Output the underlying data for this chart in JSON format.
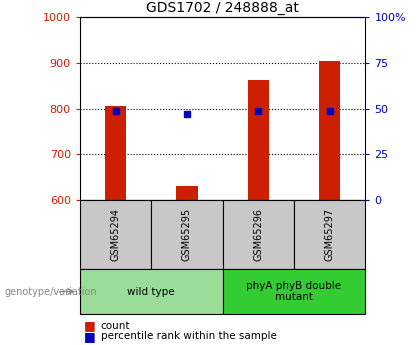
{
  "title": "GDS1702 / 248888_at",
  "samples": [
    "GSM65294",
    "GSM65295",
    "GSM65296",
    "GSM65297"
  ],
  "counts": [
    805,
    630,
    863,
    905
  ],
  "percentile_ranks": [
    49,
    47,
    49,
    49
  ],
  "ylim_left": [
    600,
    1000
  ],
  "ylim_right": [
    0,
    100
  ],
  "yticks_left": [
    600,
    700,
    800,
    900,
    1000
  ],
  "yticks_right": [
    0,
    25,
    50,
    75,
    100
  ],
  "groups": [
    {
      "label": "wild type",
      "color": "#99dd99",
      "start": 0,
      "end": 2
    },
    {
      "label": "phyA phyB double\nmutant",
      "color": "#33cc33",
      "start": 2,
      "end": 4
    }
  ],
  "bar_color": "#cc2000",
  "dot_color": "#0000bb",
  "bar_width": 0.3,
  "grid_color": "#000000",
  "label_color_left": "#cc2000",
  "label_color_right": "#0000bb",
  "sample_box_color": "#c8c8c8",
  "legend_count_label": "count",
  "legend_pct_label": "percentile rank within the sample",
  "genotype_label": "genotype/variation",
  "bg_color": "#ffffff"
}
